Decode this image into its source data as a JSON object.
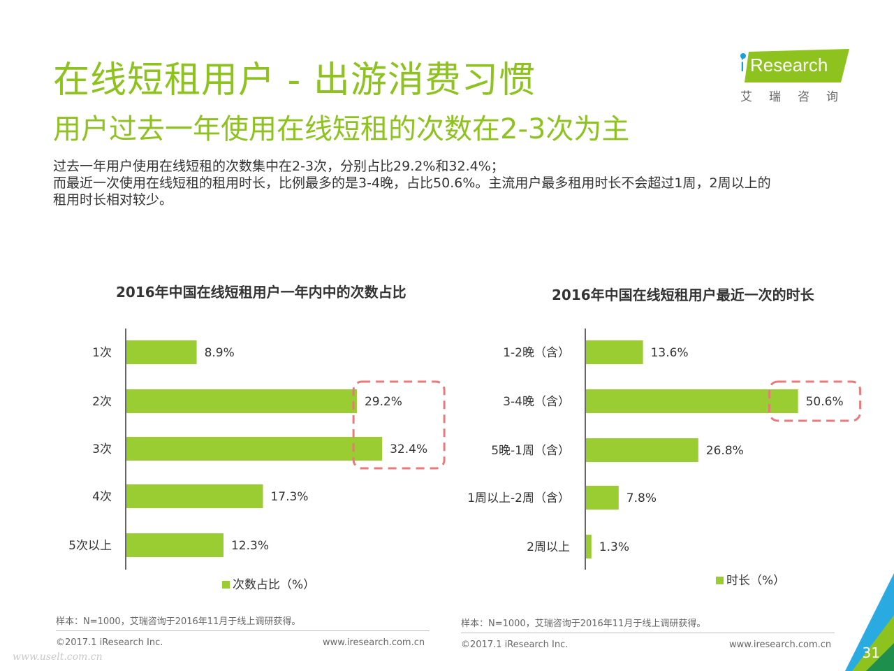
{
  "header": {
    "title": "在线短租用户 - 出游消费习惯",
    "subtitle": "用户过去一年使用在线短租的次数在2-3次为主"
  },
  "description": {
    "line1": "过去一年用户使用在线短租的次数集中在2-3次，分别占比29.2%和32.4%；",
    "line2": "而最近一次使用在线短租的租用时长，比例最多的是3-4晚，占比50.6%。主流用户最多租用时长不会超过1周，2周以上的",
    "line3": "租用时长相对较少。"
  },
  "logo": {
    "i": "i",
    "brand": "Research",
    "chinese": "艾瑞咨询"
  },
  "colors": {
    "accent": "#8dc21f",
    "bar": "#9acd32",
    "highlight_box": "#e87a7a"
  },
  "chart_data": [
    {
      "type": "bar",
      "orientation": "horizontal",
      "title": "2016年中国在线短租用户一年内中的次数占比",
      "categories": [
        "1次",
        "2次",
        "3次",
        "4次",
        "5次以上"
      ],
      "series": [
        {
          "name": "次数占比（%）",
          "values": [
            8.9,
            29.2,
            32.4,
            17.3,
            12.3
          ]
        }
      ],
      "value_labels": [
        "8.9%",
        "29.2%",
        "32.4%",
        "17.3%",
        "12.3%"
      ],
      "highlighted": [
        "2次",
        "3次"
      ],
      "legend": "bottom"
    },
    {
      "type": "bar",
      "orientation": "horizontal",
      "title": "2016年中国在线短租用户最近一次的时长",
      "categories": [
        "1-2晚（含）",
        "3-4晚（含）",
        "5晚-1周（含）",
        "1周以上-2周（含）",
        "2周以上"
      ],
      "series": [
        {
          "name": "时长（%）",
          "values": [
            13.6,
            50.6,
            26.8,
            7.8,
            1.3
          ]
        }
      ],
      "value_labels": [
        "13.6%",
        "50.6%",
        "26.8%",
        "7.8%",
        "1.3%"
      ],
      "highlighted": [
        "3-4晚（含）"
      ],
      "legend": "bottom"
    }
  ],
  "footer": {
    "sample_left": "样本：N=1000，艾瑞咨询于2016年11月于线上调研获得。",
    "sample_right": "样本：N=1000，艾瑞咨询于2016年11月于线上调研获得。",
    "copyright_left": "©2017.1 iResearch Inc.",
    "copyright_right": "©2017.1 iResearch Inc.",
    "url_left": "www.iresearch.com.cn",
    "url_right": "www.iresearch.com.cn",
    "page_number": "31",
    "watermark": "www.uselt.com.cn"
  }
}
